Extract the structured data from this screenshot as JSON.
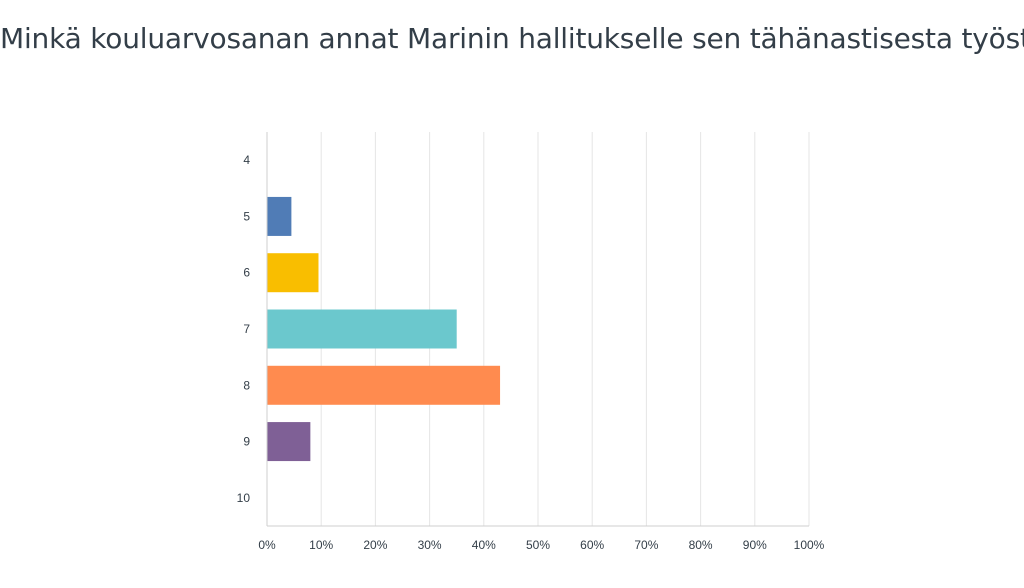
{
  "chart_data": {
    "type": "bar",
    "orientation": "horizontal",
    "title": "Minkä kouluarvosanan annat Marinin hallitukselle sen tähänastisesta työstä?",
    "categories": [
      "4",
      "5",
      "6",
      "7",
      "8",
      "9",
      "10"
    ],
    "values": [
      0,
      4.5,
      9.5,
      35,
      43,
      8,
      0
    ],
    "xlim": [
      0,
      100
    ],
    "x_ticks": [
      "0%",
      "10%",
      "20%",
      "30%",
      "40%",
      "50%",
      "60%",
      "70%",
      "80%",
      "90%",
      "100%"
    ],
    "bar_colors": [
      "#507cb6",
      "#507cb6",
      "#f9be00",
      "#6bc8cd",
      "#ff8b4f",
      "#7f6096",
      "#507cb6"
    ],
    "grid": true,
    "legend": "none"
  }
}
